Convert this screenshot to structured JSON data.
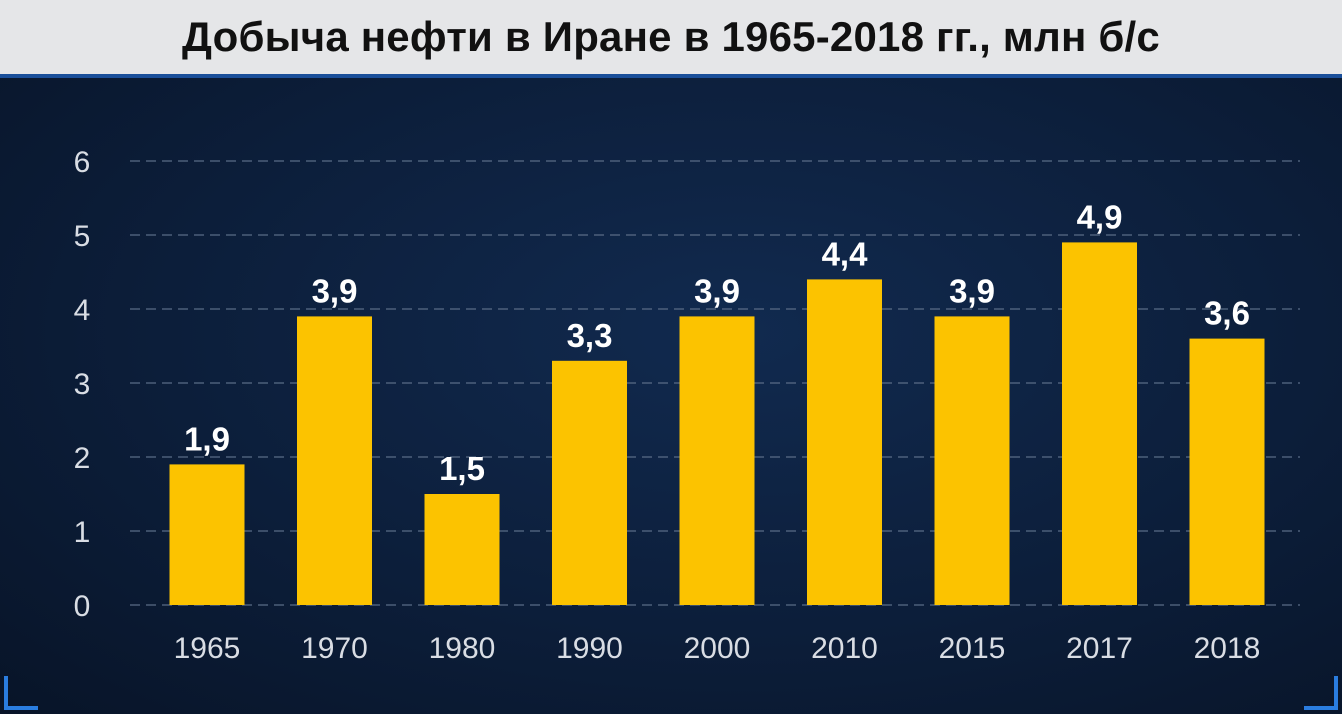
{
  "title": "Добыча нефти в Иране в 1965-2018 гг., млн б/с",
  "colors": {
    "bar": "#fcc300",
    "background": "#0c1e3a",
    "grid": "#5a6c86",
    "tick_text": "#d9dde4",
    "label_text": "#ffffff"
  },
  "chart_data": {
    "type": "bar",
    "title": "Добыча нефти в Иране в 1965-2018 гг., млн б/с",
    "categories": [
      "1965",
      "1970",
      "1980",
      "1990",
      "2000",
      "2010",
      "2015",
      "2017",
      "2018"
    ],
    "values": [
      1.9,
      3.9,
      1.5,
      3.3,
      3.9,
      4.4,
      3.9,
      4.9,
      3.6
    ],
    "value_labels": [
      "1,9",
      "3,9",
      "1,5",
      "3,3",
      "3,9",
      "4,4",
      "3,9",
      "4,9",
      "3,6"
    ],
    "yticks": [
      "0",
      "1",
      "2",
      "3",
      "4",
      "5",
      "6"
    ],
    "ylim": [
      0,
      6
    ],
    "grid": true,
    "grid_style": "dashed",
    "xlabel": "",
    "ylabel": ""
  }
}
